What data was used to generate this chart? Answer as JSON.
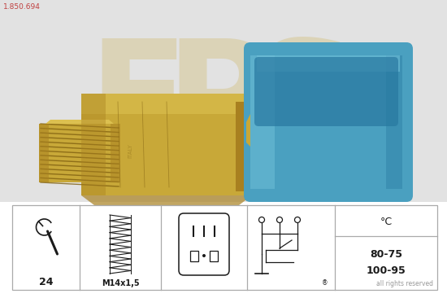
{
  "bg_color": "#ffffff",
  "part_number": "1.850.694",
  "part_number_color": "#c04040",
  "part_number_fontsize": 6.5,
  "wrench_label": "24",
  "thread_label": "M14x1,5",
  "temp_label_top": "°C",
  "rights_text": "all rights reserved",
  "rights_fontsize": 5.5,
  "table_line_color": "#aaaaaa",
  "text_color": "#1a1a1a",
  "photo_bg": "#e8e8e8",
  "body_gold_main": "#c8a838",
  "body_gold_dark": "#a88020",
  "body_gold_light": "#dcc050",
  "blue_main": "#4aa0c0",
  "blue_dark": "#2878a0",
  "blue_light": "#70c0d8",
  "thread_dark": "#806010",
  "eps_color": "#c8a838",
  "eps_alpha": 0.25
}
